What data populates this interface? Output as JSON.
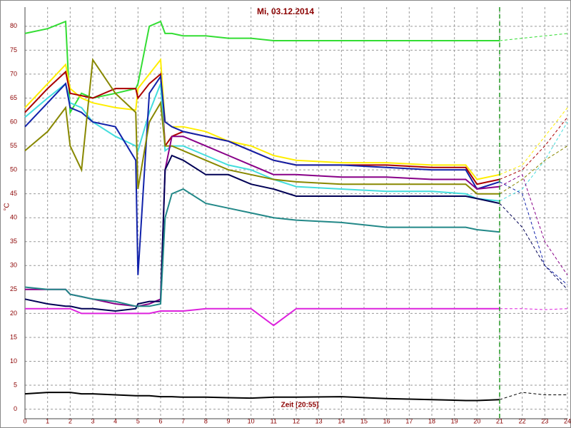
{
  "chart_data": {
    "type": "line",
    "title": "Mi, 03.12.2014",
    "x_label": "Zeit [20:55]",
    "y_label": "°C",
    "x": [
      0,
      1,
      1.8,
      2,
      2.5,
      3,
      4,
      4.9,
      5,
      5.5,
      6,
      6.2,
      6.5,
      7,
      8,
      9,
      10,
      11,
      12,
      14,
      16,
      18,
      19.5,
      20,
      21,
      22,
      23,
      24
    ],
    "xlim": [
      0,
      24
    ],
    "xticks": [
      0,
      1,
      2,
      3,
      4,
      5,
      6,
      7,
      8,
      9,
      10,
      11,
      12,
      13,
      14,
      15,
      16,
      17,
      18,
      19,
      20,
      21,
      22,
      23,
      24
    ],
    "ylim": [
      -2,
      84
    ],
    "yticks": [
      0,
      5,
      10,
      15,
      20,
      25,
      30,
      35,
      40,
      45,
      50,
      55,
      60,
      65,
      70,
      75,
      80
    ],
    "grid": true,
    "marker_x": 21,
    "marker_color": "#229922",
    "series": [
      {
        "color": "#33dd33",
        "dashed": false,
        "values": [
          78.5,
          79.5,
          81,
          62,
          66,
          65,
          66,
          67,
          68,
          80,
          81,
          78.5,
          78.5,
          78,
          78,
          77.5,
          77.5,
          77,
          77,
          77,
          77,
          77,
          77,
          77,
          77,
          null,
          null,
          null
        ]
      },
      {
        "color": "#33dd33",
        "dashed": true,
        "values": [
          null,
          null,
          null,
          null,
          null,
          null,
          null,
          null,
          null,
          null,
          null,
          null,
          null,
          null,
          null,
          null,
          null,
          null,
          null,
          null,
          null,
          null,
          null,
          null,
          77,
          77.5,
          78,
          78.5
        ]
      },
      {
        "color": "#ffee00",
        "dashed": false,
        "values": [
          63,
          68,
          72,
          67,
          65,
          64,
          63,
          62.5,
          67,
          70,
          73,
          60,
          59,
          59,
          58,
          56,
          55,
          53,
          52,
          51.5,
          51.5,
          51,
          51,
          48,
          49,
          null,
          null,
          null
        ]
      },
      {
        "color": "#ffee00",
        "dashed": true,
        "values": [
          null,
          null,
          null,
          null,
          null,
          null,
          null,
          null,
          null,
          null,
          null,
          null,
          null,
          null,
          null,
          null,
          null,
          null,
          null,
          null,
          null,
          null,
          null,
          null,
          49,
          51,
          57,
          63
        ]
      },
      {
        "color": "#aa0000",
        "dashed": false,
        "values": [
          62,
          67,
          70.5,
          66,
          65.5,
          65,
          67,
          67,
          65,
          68,
          70,
          55,
          57,
          58,
          57,
          56,
          54,
          52,
          51,
          51,
          51,
          50.5,
          50.5,
          47,
          48,
          null,
          null,
          null
        ]
      },
      {
        "color": "#aa0000",
        "dashed": true,
        "values": [
          null,
          null,
          null,
          null,
          null,
          null,
          null,
          null,
          null,
          null,
          null,
          null,
          null,
          null,
          null,
          null,
          null,
          null,
          null,
          null,
          null,
          null,
          null,
          null,
          48,
          50,
          55,
          61
        ]
      },
      {
        "color": "#44dddd",
        "dashed": false,
        "values": [
          61,
          65,
          68,
          64,
          63,
          60,
          57,
          55,
          54,
          62,
          68,
          54,
          55,
          55,
          53,
          51,
          50,
          48,
          46.5,
          46,
          45.5,
          45.5,
          45,
          44,
          43.5,
          null,
          null,
          null
        ]
      },
      {
        "color": "#44dddd",
        "dashed": true,
        "values": [
          null,
          null,
          null,
          null,
          null,
          null,
          null,
          null,
          null,
          null,
          null,
          null,
          null,
          null,
          null,
          null,
          null,
          null,
          null,
          null,
          null,
          null,
          null,
          null,
          43.5,
          46,
          52,
          60
        ]
      },
      {
        "color": "#1122aa",
        "dashed": false,
        "values": [
          59,
          64,
          68,
          63,
          62,
          60,
          59,
          52,
          28,
          66,
          69.5,
          60,
          59,
          58,
          57,
          56,
          54,
          52,
          51,
          51,
          50.5,
          50,
          50,
          46,
          47.5,
          null,
          null,
          null
        ]
      },
      {
        "color": "#1122aa",
        "dashed": true,
        "values": [
          null,
          null,
          null,
          null,
          null,
          null,
          null,
          null,
          null,
          null,
          null,
          null,
          null,
          null,
          null,
          null,
          null,
          null,
          null,
          null,
          null,
          null,
          null,
          null,
          47.5,
          45,
          30,
          26
        ]
      },
      {
        "color": "#888800",
        "dashed": false,
        "values": [
          54,
          58,
          63,
          55,
          50,
          73,
          66,
          62,
          46,
          60,
          64,
          55,
          55,
          54,
          52,
          50,
          49,
          48,
          47.5,
          47,
          47,
          47,
          47,
          45,
          45,
          null,
          null,
          null
        ]
      },
      {
        "color": "#888800",
        "dashed": true,
        "values": [
          null,
          null,
          null,
          null,
          null,
          null,
          null,
          null,
          null,
          null,
          null,
          null,
          null,
          null,
          null,
          null,
          null,
          null,
          null,
          null,
          null,
          null,
          null,
          null,
          45,
          48,
          52,
          55
        ]
      },
      {
        "color": "#880088",
        "dashed": false,
        "values": [
          25,
          25,
          25,
          24,
          23.5,
          23,
          22,
          21.5,
          21.5,
          22,
          23,
          50,
          57,
          57,
          55,
          53,
          51,
          49,
          49,
          48.5,
          48.5,
          48,
          48,
          46,
          46.5,
          null,
          null,
          null
        ]
      },
      {
        "color": "#880088",
        "dashed": true,
        "values": [
          null,
          null,
          null,
          null,
          null,
          null,
          null,
          null,
          null,
          null,
          null,
          null,
          null,
          null,
          null,
          null,
          null,
          null,
          null,
          null,
          null,
          null,
          null,
          null,
          46.5,
          49,
          35,
          28
        ]
      },
      {
        "color": "#000055",
        "dashed": false,
        "values": [
          23,
          22,
          21.5,
          21.5,
          21,
          21,
          20.5,
          21,
          22,
          22.5,
          22.5,
          50,
          53,
          52,
          49,
          49,
          47,
          46,
          44.5,
          44.5,
          44.5,
          44.5,
          44.5,
          44,
          43,
          null,
          null,
          null
        ]
      },
      {
        "color": "#000055",
        "dashed": true,
        "values": [
          null,
          null,
          null,
          null,
          null,
          null,
          null,
          null,
          null,
          null,
          null,
          null,
          null,
          null,
          null,
          null,
          null,
          null,
          null,
          null,
          null,
          null,
          null,
          null,
          43,
          38,
          30,
          25
        ]
      },
      {
        "color": "#228888",
        "dashed": false,
        "values": [
          25.5,
          25,
          25,
          24,
          23.5,
          23,
          22.5,
          21.5,
          21.5,
          21.5,
          22,
          40,
          45,
          46,
          43,
          42,
          41,
          40,
          39.5,
          39,
          38,
          38,
          38,
          37.5,
          37,
          null,
          null,
          null
        ]
      },
      {
        "color": "#dd22dd",
        "dashed": false,
        "values": [
          21,
          21,
          21,
          21,
          20,
          20,
          20,
          20,
          20,
          20,
          20.5,
          20.5,
          20.5,
          20.5,
          21,
          21,
          21,
          17.5,
          21,
          21,
          21,
          21,
          21,
          21,
          21,
          null,
          null,
          null
        ]
      },
      {
        "color": "#dd22dd",
        "dashed": true,
        "values": [
          null,
          null,
          null,
          null,
          null,
          null,
          null,
          null,
          null,
          null,
          null,
          null,
          null,
          null,
          null,
          null,
          null,
          null,
          null,
          null,
          null,
          null,
          null,
          null,
          21,
          21,
          20.8,
          21
        ]
      },
      {
        "color": "#000000",
        "dashed": false,
        "values": [
          3.2,
          3.5,
          3.5,
          3.5,
          3.2,
          3.2,
          3,
          2.8,
          2.8,
          2.8,
          2.6,
          2.6,
          2.6,
          2.5,
          2.5,
          2.4,
          2.3,
          2.5,
          2.5,
          2.6,
          2.2,
          2,
          1.8,
          1.8,
          2,
          null,
          null,
          null
        ]
      },
      {
        "color": "#000000",
        "dashed": true,
        "values": [
          null,
          null,
          null,
          null,
          null,
          null,
          null,
          null,
          null,
          null,
          null,
          null,
          null,
          null,
          null,
          null,
          null,
          null,
          null,
          null,
          null,
          null,
          null,
          null,
          2,
          3.5,
          3,
          3
        ]
      }
    ]
  }
}
